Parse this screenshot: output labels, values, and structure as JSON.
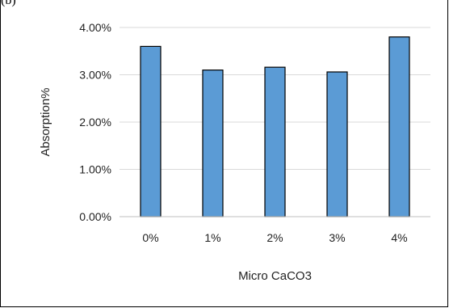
{
  "panel_label": "(b)",
  "chart_data": {
    "type": "bar",
    "categories": [
      "0%",
      "1%",
      "2%",
      "3%",
      "4%"
    ],
    "values": [
      3.6,
      3.1,
      3.16,
      3.06,
      3.8
    ],
    "value_unit": "%",
    "xlabel": "Micro CaCO3",
    "ylabel": "Absorption%",
    "ylim": [
      0,
      4
    ],
    "yticks": [
      "0.00%",
      "1.00%",
      "2.00%",
      "3.00%",
      "4.00%"
    ],
    "grid": true,
    "legend": "none",
    "bar_color": "#5b9bd5",
    "bar_edge_color": "#000000",
    "grid_color": "#d9d9d9"
  }
}
